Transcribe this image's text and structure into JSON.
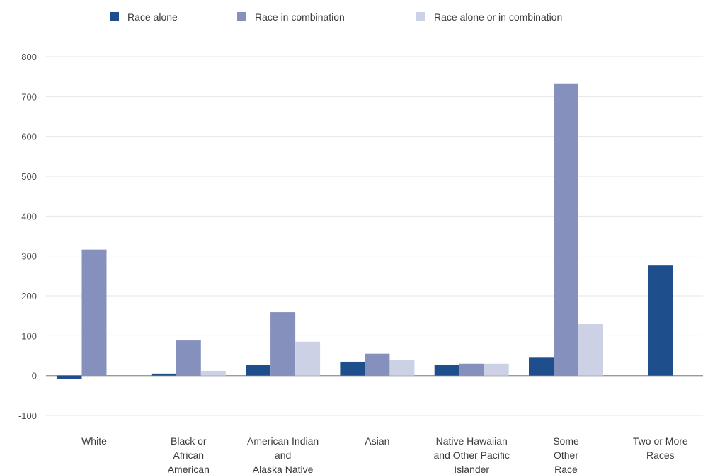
{
  "chart_data": {
    "type": "bar",
    "categories": [
      [
        "White"
      ],
      [
        "Black or",
        "African",
        "American"
      ],
      [
        "American Indian",
        "and",
        "Alaska Native"
      ],
      [
        "Asian"
      ],
      [
        "Native Hawaiian",
        "and Other Pacific",
        "Islander"
      ],
      [
        "Some",
        "Other",
        "Race"
      ],
      [
        "Two or More",
        "Races"
      ]
    ],
    "series": [
      {
        "name": "Race alone",
        "color": "#1f4e8c",
        "values": [
          -8,
          5,
          27,
          35,
          27,
          45,
          276
        ]
      },
      {
        "name": "Race in combination",
        "color": "#8590bd",
        "values": [
          316,
          88,
          159,
          55,
          30,
          733,
          null
        ]
      },
      {
        "name": "Race alone or in combination",
        "color": "#cdd1e6",
        "values": [
          null,
          12,
          85,
          40,
          30,
          129,
          null
        ]
      }
    ],
    "ylim": [
      -100,
      800
    ],
    "yticks": [
      800,
      700,
      600,
      500,
      400,
      300,
      200,
      100,
      0,
      -100
    ],
    "grid": true,
    "legend": "top-center",
    "title": "",
    "xlabel": "",
    "ylabel": ""
  }
}
